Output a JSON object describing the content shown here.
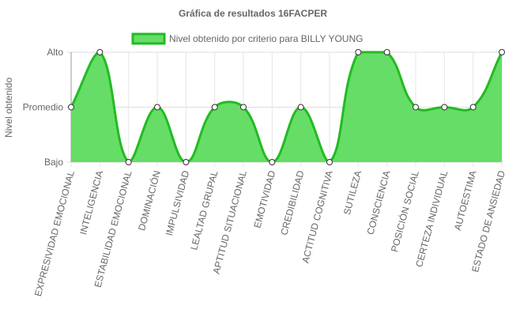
{
  "chart_data": {
    "type": "line",
    "title": "Gráfica de resultados 16FACPER",
    "ylabel": "Nivel obtenido",
    "categories": [
      "EXPRESIVIDAD EMOCIONAL",
      "INTELIGENCIA",
      "ESTABILIDAD EMOCIONAL",
      "DOMINACIÓN",
      "IMPULSIVIDAD",
      "LEALTAD GRUPAL",
      "APTITUD SITUACIONAL",
      "EMOTIVIDAD",
      "CREDIBILIDAD",
      "ACTITUD COGNITIVA",
      "SUTILEZA",
      "CONSCIENCIA",
      "POSICIÓN SOCIAL",
      "CERTEZA INDIVIDUAL",
      "AUTOESTIMA",
      "ESTADO DE ANSIEDAD"
    ],
    "series": [
      {
        "name": "Nivel obtenido por criterio para BILLY YOUNG",
        "color": "#22bb22",
        "fill": "#66dd66",
        "values": [
          2,
          3,
          1,
          2,
          1,
          2,
          2,
          1,
          2,
          1,
          3,
          3,
          2,
          2,
          2,
          3
        ]
      }
    ],
    "ylim": [
      1,
      3
    ],
    "yticks": [
      {
        "value": 1,
        "label": "Bajo"
      },
      {
        "value": 2,
        "label": "Promedio"
      },
      {
        "value": 3,
        "label": "Alto"
      }
    ],
    "grid": true,
    "legend": "top"
  }
}
